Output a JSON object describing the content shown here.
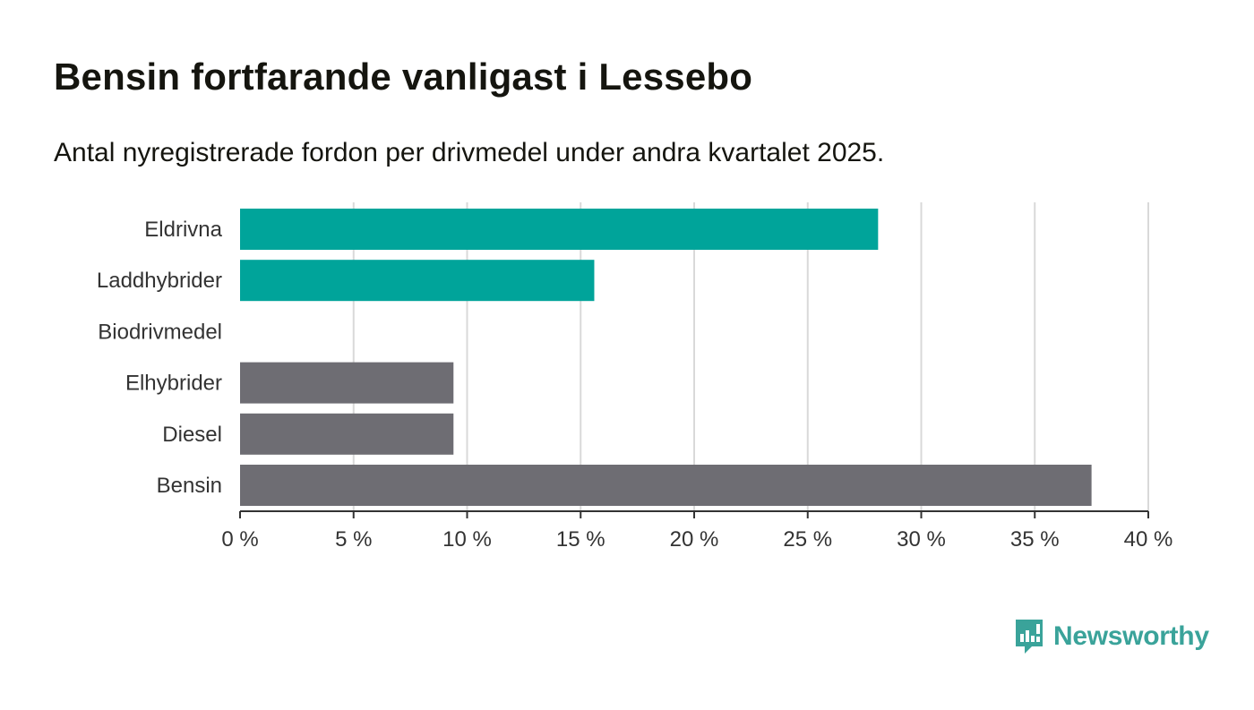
{
  "title": "Bensin fortfarande vanligast i Lessebo",
  "subtitle": "Antal nyregistrerade fordon per drivmedel under andra kvartalet 2025.",
  "brand": {
    "name": "Newsworthy",
    "icon": "newsworthy-logo-icon",
    "color": "#3aa39a"
  },
  "colors": {
    "teal": "#00a49a",
    "gray": "#6e6d73",
    "grid": "#d9d9d9",
    "axis": "#333333"
  },
  "chart_data": {
    "type": "bar",
    "orientation": "horizontal",
    "categories": [
      "Eldrivna",
      "Laddhybrider",
      "Biodrivmedel",
      "Elhybrider",
      "Diesel",
      "Bensin"
    ],
    "values": [
      28.1,
      15.6,
      0,
      9.4,
      9.4,
      37.5
    ],
    "bar_colors": [
      "#00a49a",
      "#00a49a",
      "#00a49a",
      "#6e6d73",
      "#6e6d73",
      "#6e6d73"
    ],
    "xlim": [
      0,
      40
    ],
    "xticks": [
      0,
      5,
      10,
      15,
      20,
      25,
      30,
      35,
      40
    ],
    "xtick_labels": [
      "0 %",
      "5 %",
      "10 %",
      "15 %",
      "20 %",
      "25 %",
      "30 %",
      "35 %",
      "40 %"
    ],
    "grid": "vertical",
    "xlabel": "",
    "ylabel": ""
  }
}
